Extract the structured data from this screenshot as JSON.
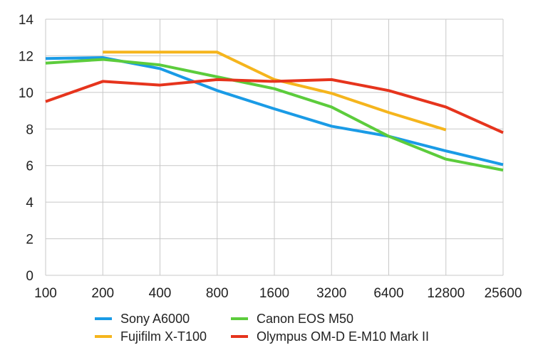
{
  "chart_data": {
    "type": "line",
    "title": "",
    "xlabel": "",
    "ylabel": "",
    "x_scale": "categorical",
    "categories": [
      "100",
      "200",
      "400",
      "800",
      "1600",
      "3200",
      "6400",
      "12800",
      "25600"
    ],
    "ylim": [
      0,
      14
    ],
    "yticks": [
      0,
      2,
      4,
      6,
      8,
      10,
      12,
      14
    ],
    "grid": true,
    "legend_position": "bottom",
    "series": [
      {
        "name": "Sony A6000",
        "color": "#1a9be6",
        "values": [
          11.85,
          11.9,
          11.3,
          10.1,
          9.1,
          8.15,
          7.6,
          6.8,
          6.05
        ]
      },
      {
        "name": "Fujifilm X-T100",
        "color": "#f5b51d",
        "values": [
          null,
          12.2,
          12.2,
          12.2,
          10.7,
          9.95,
          8.9,
          7.95,
          null
        ]
      },
      {
        "name": "Canon EOS M50",
        "color": "#5ccc3c",
        "values": [
          11.6,
          11.8,
          11.5,
          10.85,
          10.2,
          9.2,
          7.6,
          6.35,
          5.75
        ]
      },
      {
        "name": "Olympus OM-D E-M10 Mark II",
        "color": "#e6341d",
        "values": [
          9.5,
          10.6,
          10.4,
          10.7,
          10.6,
          10.7,
          10.1,
          9.2,
          7.8
        ]
      }
    ],
    "legend_order": [
      "Sony A6000",
      "Canon EOS M50",
      "Fujifilm X-T100",
      "Olympus OM-D E-M10 Mark II"
    ]
  }
}
